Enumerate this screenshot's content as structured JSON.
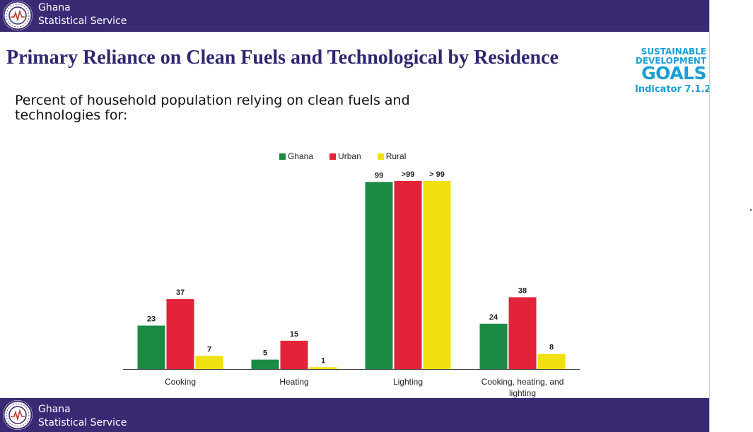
{
  "header": {
    "org_line1": "Ghana",
    "org_line2": "Statistical Service"
  },
  "footer": {
    "org_line1": "Ghana",
    "org_line2": "Statistical Service"
  },
  "slide": {
    "title": "Primary Reliance on Clean Fuels and Technological by Residence",
    "subtitle": "Percent of household population relying on clean fuels and technologies for:"
  },
  "sdg": {
    "line1": "SUSTAINABLE",
    "line2": "DEVELOPMENT",
    "line3": "GOALS",
    "indicator": "Indicator 7.1.2"
  },
  "colors": {
    "band": "#3a2a73",
    "title": "#2e2770",
    "sdg_blue": "#1a9fd6",
    "ghana": "#1b8a45",
    "urban": "#e2233a",
    "rural": "#f0e012"
  },
  "chart_data": {
    "type": "bar",
    "categories": [
      "Cooking",
      "Heating",
      "Lighting",
      "Cooking, heating, and lighting"
    ],
    "series": [
      {
        "name": "Ghana",
        "color": "#1b8a45",
        "values": [
          23,
          5,
          99,
          24
        ],
        "labels": [
          "23",
          "5",
          "99",
          "24"
        ]
      },
      {
        "name": "Urban",
        "color": "#e2233a",
        "values": [
          37,
          15,
          99.5,
          38
        ],
        "labels": [
          "37",
          "15",
          ">99",
          "38"
        ]
      },
      {
        "name": "Rural",
        "color": "#f0e012",
        "values": [
          7,
          1,
          99.5,
          8
        ],
        "labels": [
          "7",
          "1",
          "> 99",
          "8"
        ]
      }
    ],
    "ylim": [
      0,
      100
    ],
    "legend": "top",
    "grid": false
  }
}
